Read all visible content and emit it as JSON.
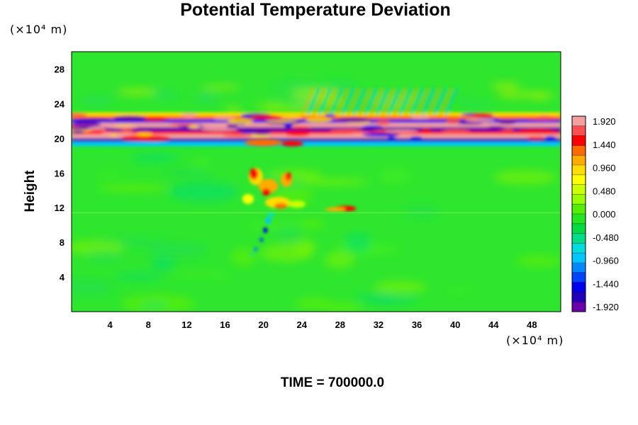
{
  "chart_data": {
    "type": "heatmap",
    "title": "Potential Temperature Deviation",
    "ylabel": "Height",
    "x_unit_label": "(×10⁴ m)",
    "y_unit_label": "(×10⁴ m)",
    "x_ticks": [
      4,
      8,
      12,
      16,
      20,
      24,
      28,
      32,
      36,
      40,
      44,
      48
    ],
    "y_ticks": [
      4,
      8,
      12,
      16,
      20,
      24,
      28
    ],
    "xlim": [
      0,
      51
    ],
    "ylim": [
      0,
      30
    ],
    "colorbar": {
      "labels": [
        "1.920",
        "1.440",
        "0.960",
        "0.480",
        "0.000",
        "-0.480",
        "-0.960",
        "-1.440",
        "-1.920"
      ],
      "colors_top_to_bottom": [
        "#f4a0a0",
        "#ff5050",
        "#ff0000",
        "#ff6a00",
        "#ffaa00",
        "#ffdd00",
        "#ffff00",
        "#ccff00",
        "#99ff00",
        "#55ee00",
        "#22e622",
        "#00dd44",
        "#00dd88",
        "#00dddd",
        "#00c8ff",
        "#0088ff",
        "#0044ff",
        "#0000ee",
        "#2200bb",
        "#6a00aa"
      ]
    },
    "features": [
      {
        "name": "stratospheric layer",
        "x": [
          0,
          51
        ],
        "y": [
          19.5,
          23
        ],
        "level": "alternating ±1.92"
      },
      {
        "name": "convective plume",
        "x": [
          18,
          24
        ],
        "y": [
          10,
          17
        ],
        "level": "1.44"
      },
      {
        "name": "cold tail",
        "x": [
          18.5,
          21
        ],
        "y": [
          6.5,
          10
        ],
        "level": "-1.44"
      },
      {
        "name": "warm patch",
        "x": [
          27,
          30
        ],
        "y": [
          11.5,
          12.5
        ],
        "level": "1.44"
      }
    ]
  },
  "time_label": "TIME = 700000.0"
}
